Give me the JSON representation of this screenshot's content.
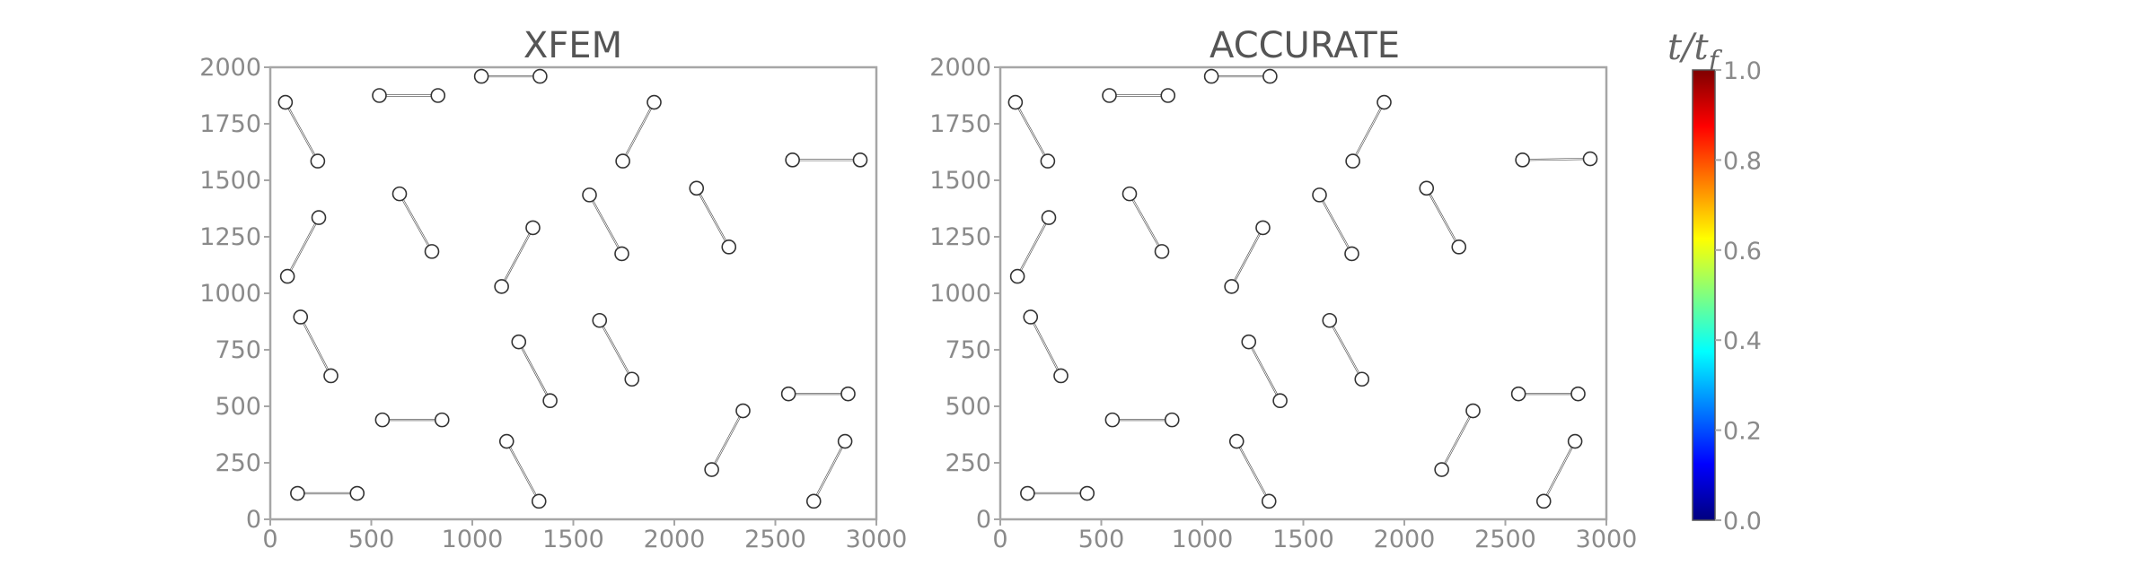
{
  "chart_data": [
    {
      "type": "scatter",
      "title": "XFEM",
      "xlim": [
        0,
        3000
      ],
      "ylim": [
        0,
        2000
      ],
      "xticks": [
        "0",
        "500",
        "1000",
        "1500",
        "2000",
        "2500",
        "3000"
      ],
      "yticks": [
        "0",
        "250",
        "500",
        "750",
        "1000",
        "1250",
        "1500",
        "1750",
        "2000"
      ],
      "grid": false,
      "segments": [
        {
          "x1": 75,
          "y1": 1845,
          "x2": 235,
          "y2": 1585
        },
        {
          "x1": 540,
          "y1": 1875,
          "x2": 830,
          "y2": 1875
        },
        {
          "x1": 1045,
          "y1": 1960,
          "x2": 1335,
          "y2": 1960
        },
        {
          "x1": 1745,
          "y1": 1585,
          "x2": 1900,
          "y2": 1845
        },
        {
          "x1": 2585,
          "y1": 1590,
          "x2": 2920,
          "y2": 1590
        },
        {
          "x1": 85,
          "y1": 1075,
          "x2": 240,
          "y2": 1335
        },
        {
          "x1": 640,
          "y1": 1440,
          "x2": 800,
          "y2": 1185
        },
        {
          "x1": 1145,
          "y1": 1030,
          "x2": 1300,
          "y2": 1290
        },
        {
          "x1": 1580,
          "y1": 1435,
          "x2": 1740,
          "y2": 1175
        },
        {
          "x1": 2110,
          "y1": 1465,
          "x2": 2270,
          "y2": 1205
        },
        {
          "x1": 150,
          "y1": 895,
          "x2": 300,
          "y2": 635
        },
        {
          "x1": 1230,
          "y1": 785,
          "x2": 1385,
          "y2": 525
        },
        {
          "x1": 1630,
          "y1": 880,
          "x2": 1790,
          "y2": 620
        },
        {
          "x1": 555,
          "y1": 440,
          "x2": 850,
          "y2": 440
        },
        {
          "x1": 2565,
          "y1": 555,
          "x2": 2860,
          "y2": 555
        },
        {
          "x1": 2185,
          "y1": 220,
          "x2": 2340,
          "y2": 480
        },
        {
          "x1": 1170,
          "y1": 345,
          "x2": 1330,
          "y2": 80
        },
        {
          "x1": 2690,
          "y1": 80,
          "x2": 2845,
          "y2": 345
        },
        {
          "x1": 135,
          "y1": 115,
          "x2": 430,
          "y2": 115
        }
      ]
    },
    {
      "type": "scatter",
      "title": "ACCURATE",
      "xlim": [
        0,
        3000
      ],
      "ylim": [
        0,
        2000
      ],
      "xticks": [
        "0",
        "500",
        "1000",
        "1500",
        "2000",
        "2500",
        "3000"
      ],
      "yticks": [
        "0",
        "250",
        "500",
        "750",
        "1000",
        "1250",
        "1500",
        "1750",
        "2000"
      ],
      "grid": false,
      "segments": [
        {
          "x1": 75,
          "y1": 1845,
          "x2": 235,
          "y2": 1585
        },
        {
          "x1": 540,
          "y1": 1875,
          "x2": 830,
          "y2": 1875
        },
        {
          "x1": 1045,
          "y1": 1960,
          "x2": 1335,
          "y2": 1960
        },
        {
          "x1": 1745,
          "y1": 1585,
          "x2": 1900,
          "y2": 1845
        },
        {
          "x1": 2585,
          "y1": 1590,
          "x2": 2920,
          "y2": 1595
        },
        {
          "x1": 85,
          "y1": 1075,
          "x2": 240,
          "y2": 1335
        },
        {
          "x1": 640,
          "y1": 1440,
          "x2": 800,
          "y2": 1185
        },
        {
          "x1": 1145,
          "y1": 1030,
          "x2": 1300,
          "y2": 1290
        },
        {
          "x1": 1580,
          "y1": 1435,
          "x2": 1740,
          "y2": 1175
        },
        {
          "x1": 2110,
          "y1": 1465,
          "x2": 2270,
          "y2": 1205
        },
        {
          "x1": 150,
          "y1": 895,
          "x2": 300,
          "y2": 635
        },
        {
          "x1": 1230,
          "y1": 785,
          "x2": 1385,
          "y2": 525
        },
        {
          "x1": 1630,
          "y1": 880,
          "x2": 1790,
          "y2": 620
        },
        {
          "x1": 555,
          "y1": 440,
          "x2": 850,
          "y2": 440
        },
        {
          "x1": 2565,
          "y1": 555,
          "x2": 2860,
          "y2": 555
        },
        {
          "x1": 2185,
          "y1": 220,
          "x2": 2340,
          "y2": 480
        },
        {
          "x1": 1170,
          "y1": 345,
          "x2": 1330,
          "y2": 80
        },
        {
          "x1": 2690,
          "y1": 80,
          "x2": 2845,
          "y2": 345
        },
        {
          "x1": 135,
          "y1": 115,
          "x2": 430,
          "y2": 115
        }
      ]
    }
  ],
  "colorbar": {
    "label": "t/t_f",
    "label_main": "t/t",
    "label_sub": "f",
    "range": [
      0.0,
      1.0
    ],
    "ticks": [
      "0.0",
      "0.2",
      "0.4",
      "0.6",
      "0.8",
      "1.0"
    ],
    "colormap": "jet",
    "colors": [
      "#00007f",
      "#0000ff",
      "#0080ff",
      "#00ffff",
      "#80ff80",
      "#ffff00",
      "#ff8000",
      "#ff0000",
      "#7f0000"
    ]
  }
}
